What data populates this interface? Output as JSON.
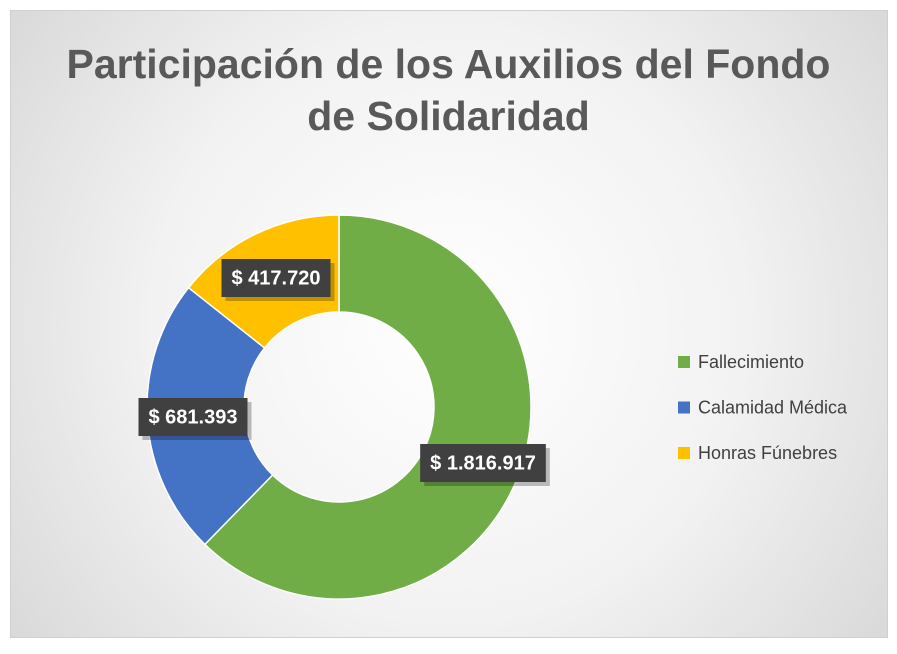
{
  "chart_data": {
    "type": "donut",
    "title": "Participación de los Auxilios del Fondo de Solidaridad",
    "categories": [
      "Fallecimiento",
      "Calamidad Médica",
      "Honras Fúnebres"
    ],
    "values": [
      1816917,
      681393,
      417720
    ],
    "value_labels": [
      "$ 1.816.917",
      "$ 681.393",
      "$ 417.720"
    ],
    "colors": [
      "#70ad47",
      "#4472c4",
      "#ffc000"
    ],
    "legend": "right"
  }
}
